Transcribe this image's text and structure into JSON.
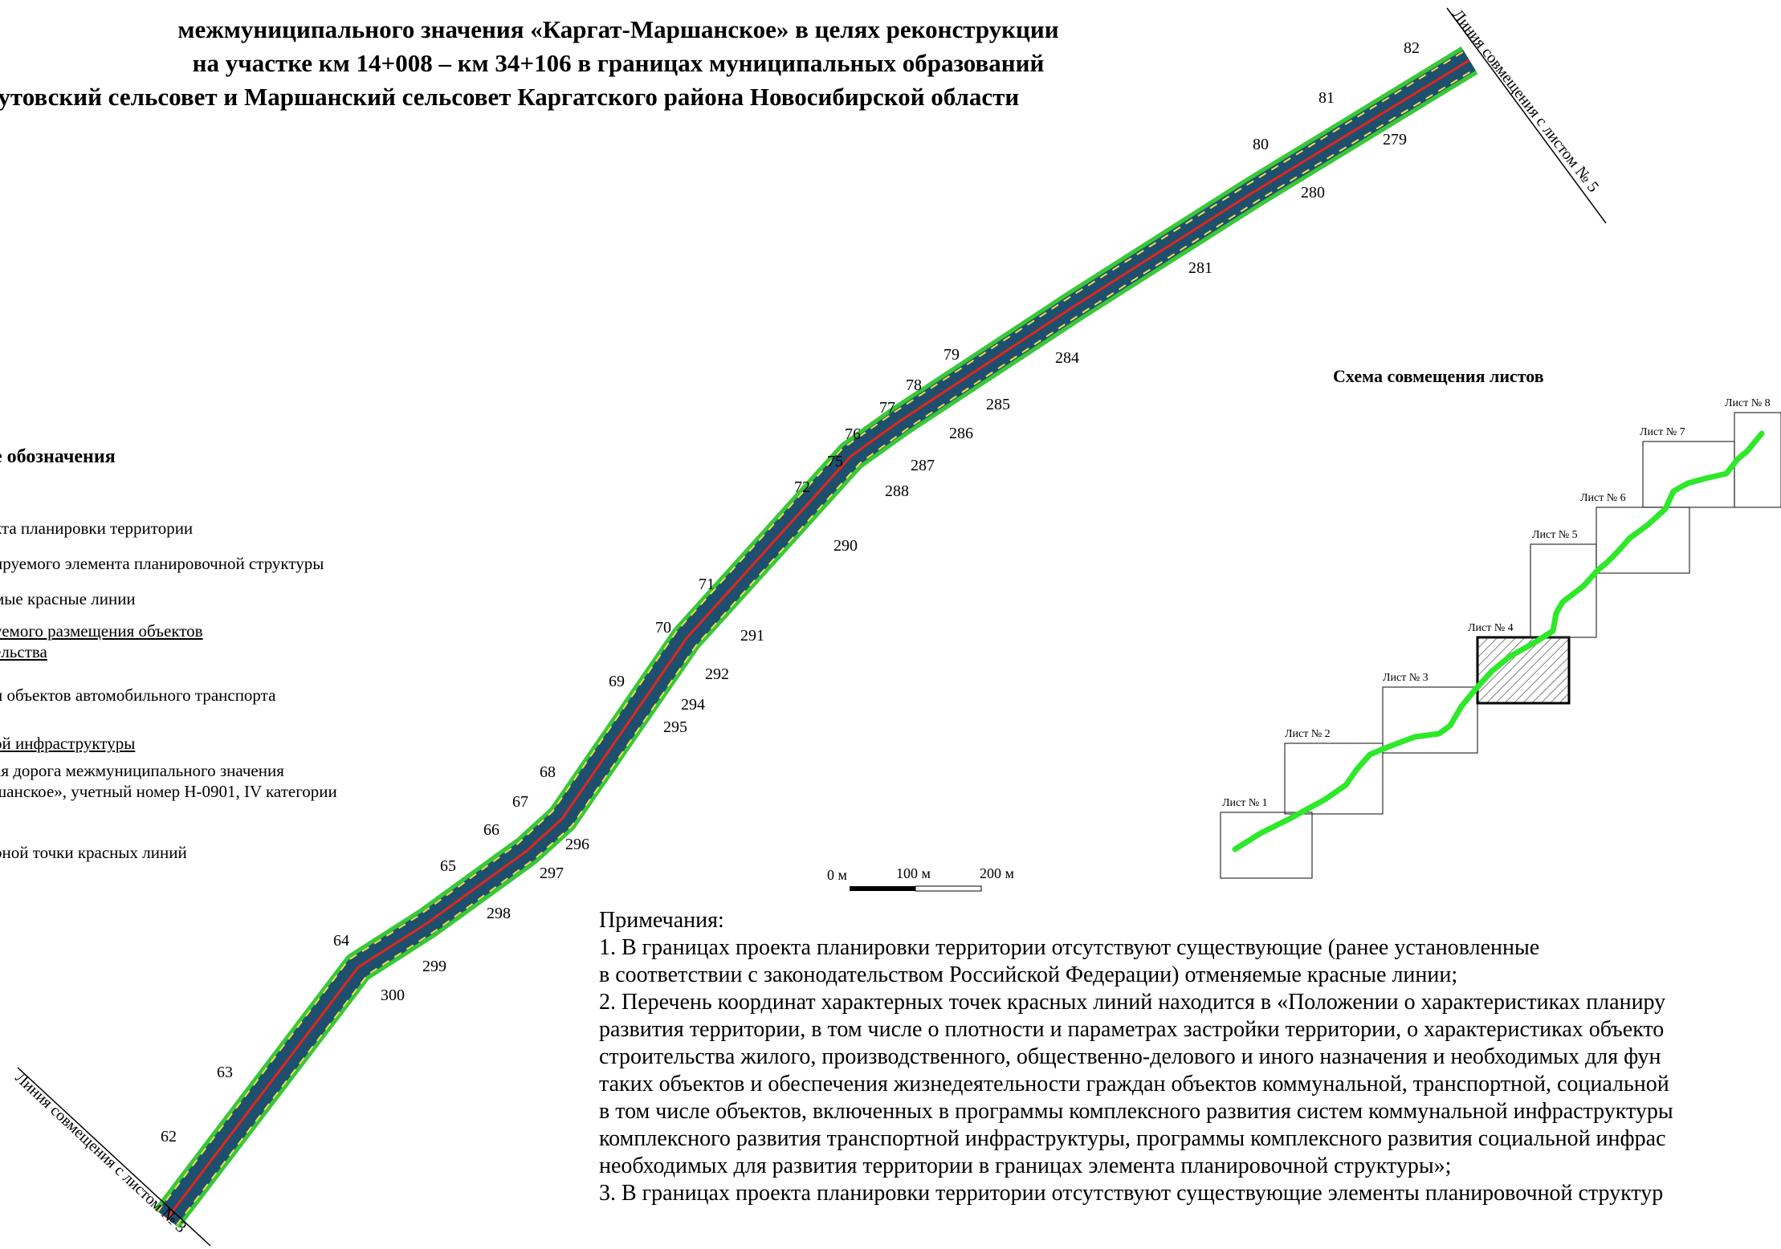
{
  "title": {
    "line1": "межмуниципального значения «Каргат-Маршанское» в целях реконструкции",
    "line2": "на участке км 14+008 – км 34+106 в границах муниципальных образований",
    "line3": "кутовский сельсовет и Маршанский сельсовет Каргатского района Новосибирской области"
  },
  "legend": {
    "heading": "е обозначения",
    "items": [
      "кта планировки территории",
      "ируемого элемента планировочной структуры",
      "мые красные линии",
      "уемого размещения объектов",
      "ельства",
      "и объектов автомобильного транспорта",
      "ой инфраструктуры",
      "ая дорога межмуниципального значения",
      "шанское», учетный номер Н-0901, IV категории",
      "рной точки красных линий"
    ]
  },
  "match_lines": {
    "top": "Линия совмещения с листом № 5",
    "bottom": "Линия совмещения с листом № 3"
  },
  "left_points": [
    "62",
    "63",
    "64",
    "65",
    "66",
    "67",
    "68",
    "69",
    "70",
    "71",
    "72",
    "75",
    "76",
    "77",
    "78",
    "79",
    "80",
    "81",
    "82"
  ],
  "right_points": [
    "279",
    "280",
    "281",
    "284",
    "285",
    "286",
    "287",
    "288",
    "290",
    "291",
    "292",
    "294",
    "295",
    "296",
    "297",
    "298",
    "299",
    "300"
  ],
  "scale_bar": {
    "labels": [
      "0 м",
      "100 м",
      "200 м"
    ]
  },
  "scheme": {
    "title": "Схема совмещения листов",
    "sheets": [
      "Лист № 1",
      "Лист № 2",
      "Лист № 3",
      "Лист № 4",
      "Лист № 5",
      "Лист № 6",
      "Лист № 7",
      "Лист № 8"
    ],
    "current_sheet": "Лист № 4",
    "route_color": "#2ee82a"
  },
  "colors": {
    "road_fill": "#1e4f6e",
    "green_edge": "#39c837",
    "red_line": "#e3261c",
    "yellow_line": "#f0e04a"
  },
  "notes": {
    "heading": "Примечания:",
    "lines": [
      "1. В границах проекта планировки территории отсутствуют существующие (ранее установленные",
      "в соответствии с законодательством Российской Федерации) отменяемые красные линии;",
      "2. Перечень координат характерных точек красных линий находится в «Положении о характеристиках планиру",
      "развития территории, в том числе о плотности и параметрах застройки территории, о характеристиках объекто",
      "строительства жилого, производственного, общественно-делового и иного назначения и необходимых для фун",
      "таких объектов и обеспечения жизнедеятельности граждан объектов коммунальной, транспортной, социальной",
      "в том числе объектов, включенных в программы комплексного развития систем коммунальной инфраструктуры",
      "комплексного развития транспортной инфраструктуры, программы комплексного развития социальной инфрас",
      "необходимых для развития территории в границах элемента планировочной структуры»;",
      "3. В границах проекта планировки территории отсутствуют существующие элементы планировочной структур"
    ]
  }
}
